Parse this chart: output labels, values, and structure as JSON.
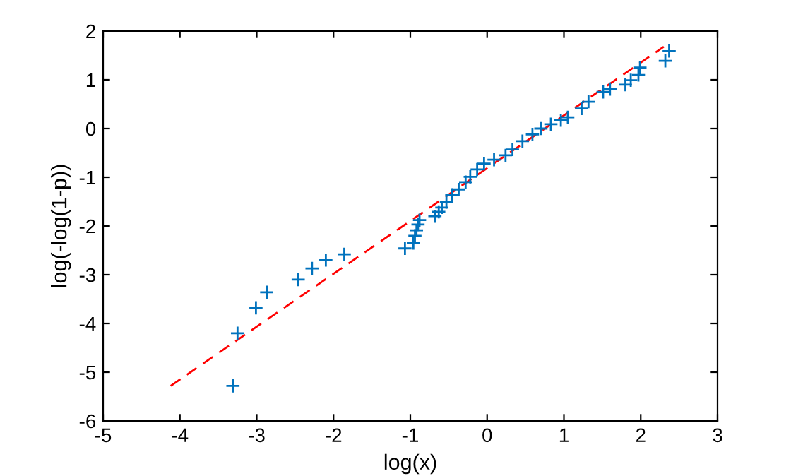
{
  "chart_data": {
    "type": "scatter",
    "xlabel": "log(x)",
    "ylabel": "log(-log(1-p))",
    "xlim": [
      -5,
      3
    ],
    "ylim": [
      -6,
      2
    ],
    "xticks": [
      -5,
      -4,
      -3,
      -2,
      -1,
      0,
      1,
      2,
      3
    ],
    "yticks": [
      -6,
      -5,
      -4,
      -3,
      -2,
      -1,
      0,
      1,
      2
    ],
    "grid": false,
    "series": [
      {
        "color": "#0072bd",
        "marker": "cross",
        "x": [
          -3.31,
          -3.25,
          -3.01,
          -2.87,
          -2.46,
          -2.28,
          -2.1,
          -1.86,
          -1.07,
          -0.96,
          -0.94,
          -0.92,
          -0.9,
          -0.88,
          -0.68,
          -0.63,
          -0.59,
          -0.53,
          -0.46,
          -0.37,
          -0.28,
          -0.22,
          -0.13,
          -0.04,
          0.09,
          0.24,
          0.33,
          0.46,
          0.59,
          0.7,
          0.83,
          0.96,
          1.05,
          1.23,
          1.32,
          1.51,
          1.6,
          1.8,
          1.87,
          1.97,
          1.99,
          2.32,
          2.37
        ],
        "values": [
          -5.28,
          -4.2,
          -3.68,
          -3.36,
          -3.1,
          -2.87,
          -2.7,
          -2.58,
          -2.46,
          -2.35,
          -2.2,
          -2.09,
          -1.97,
          -1.88,
          -1.8,
          -1.71,
          -1.62,
          -1.51,
          -1.36,
          -1.25,
          -1.1,
          -0.99,
          -0.84,
          -0.72,
          -0.64,
          -0.55,
          -0.43,
          -0.26,
          -0.12,
          0,
          0.09,
          0.17,
          0.23,
          0.41,
          0.55,
          0.75,
          0.81,
          0.9,
          0.99,
          1.1,
          1.25,
          1.39,
          1.59
        ]
      },
      {
        "type": "line",
        "color": "#ff0000",
        "line_style": "dashed",
        "x": [
          -4.12,
          2.3
        ],
        "values": [
          -5.28,
          1.68
        ]
      }
    ]
  }
}
